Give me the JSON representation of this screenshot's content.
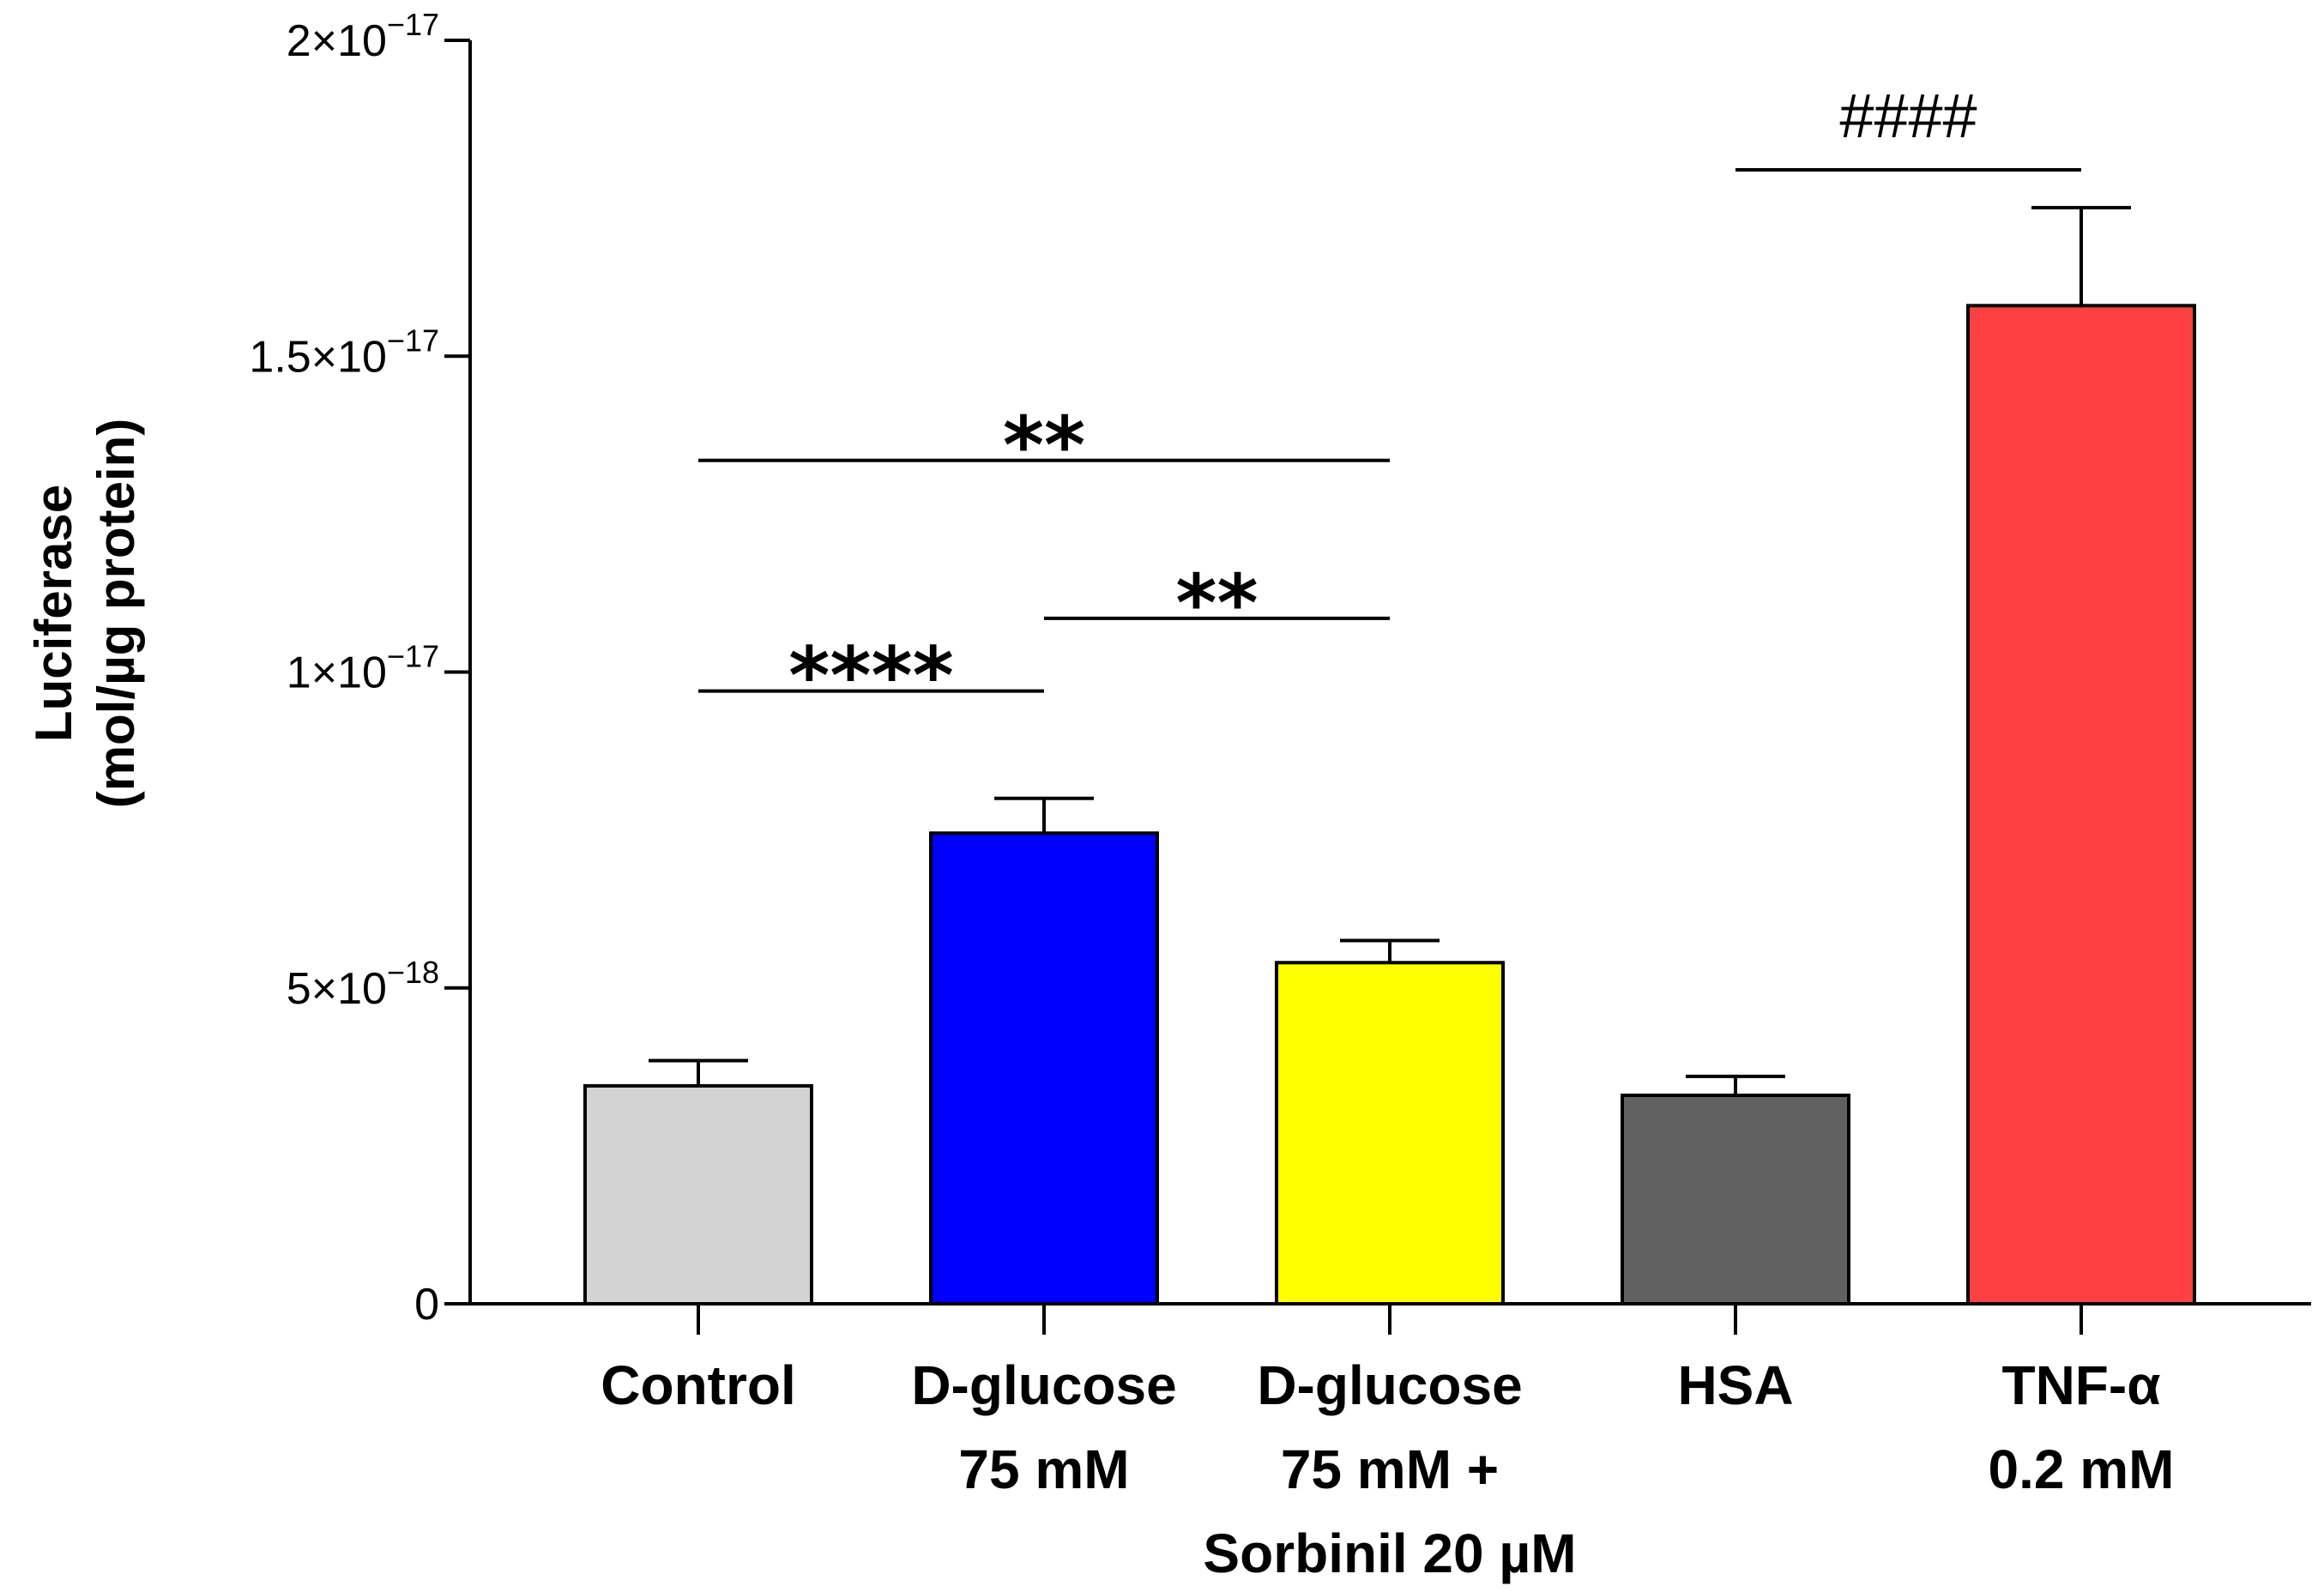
{
  "chart_data": {
    "type": "bar",
    "title": "",
    "xlabel": "",
    "ylabel_lines": [
      "Luciferase",
      "(mol/µg protein)"
    ],
    "ylim": [
      0,
      2e-17
    ],
    "yticks": [
      {
        "value": 0,
        "label_base": "0",
        "label_exp": ""
      },
      {
        "value": 5e-18,
        "label_base": "5×10",
        "label_exp": "−18"
      },
      {
        "value": 1e-17,
        "label_base": "1×10",
        "label_exp": "−17"
      },
      {
        "value": 1.5e-17,
        "label_base": "1.5×10",
        "label_exp": "−17"
      },
      {
        "value": 2e-17,
        "label_base": "2×10",
        "label_exp": "−17"
      }
    ],
    "categories": [
      {
        "lines": [
          "Control"
        ]
      },
      {
        "lines": [
          "D-glucose",
          "75 mM"
        ]
      },
      {
        "lines": [
          "D-glucose",
          "75 mM +",
          "Sorbinil 20 µM"
        ]
      },
      {
        "lines": [
          "HSA"
        ]
      },
      {
        "lines": [
          "TNF-α",
          "0.2 mM"
        ]
      }
    ],
    "values": [
      3.45e-18,
      7.45e-18,
      5.4e-18,
      3.3e-18,
      1.58e-17
    ],
    "errors": [
      4e-19,
      5.5e-19,
      3.5e-19,
      3e-19,
      1.55e-18
    ],
    "colors": [
      "#d3d3d3",
      "#0000ff",
      "#ffff00",
      "#616161",
      "#ff4040"
    ],
    "significance": [
      {
        "from": 0,
        "to": 1,
        "level": 9.7e-18,
        "label": "****",
        "style": "star"
      },
      {
        "from": 1,
        "to": 2,
        "level": 1.085e-17,
        "label": "**",
        "style": "star"
      },
      {
        "from": 0,
        "to": 2,
        "level": 1.335e-17,
        "label": "**",
        "style": "star"
      },
      {
        "from": 3,
        "to": 4,
        "level": 1.795e-17,
        "label": "####",
        "style": "hash"
      }
    ]
  }
}
